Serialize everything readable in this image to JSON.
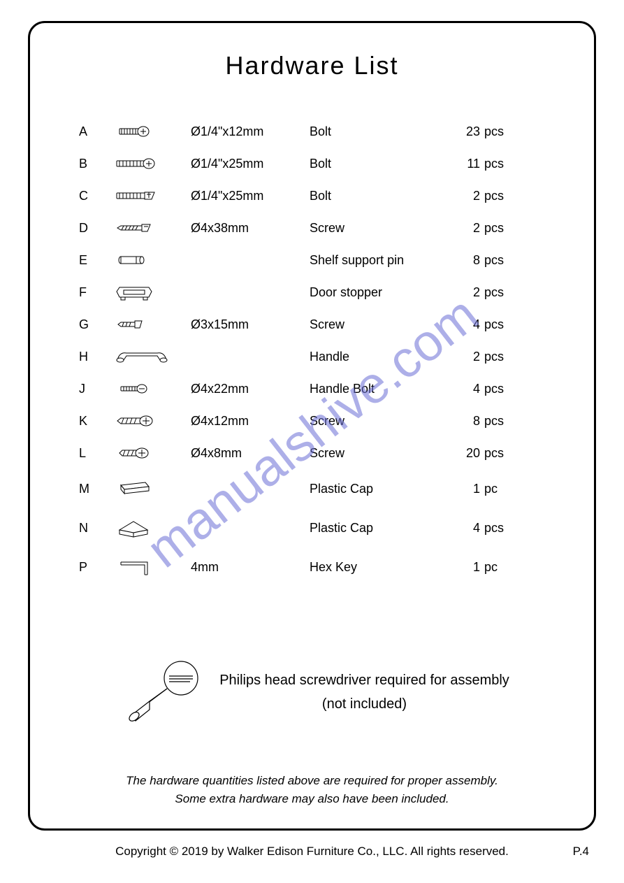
{
  "title": "Hardware   List",
  "watermark": {
    "text": "manualshive.com",
    "color": "#6b6fd6",
    "opacity": 0.55,
    "angle_deg": -38,
    "fontsize": 74
  },
  "columns": [
    "letter",
    "icon",
    "size",
    "name",
    "qty",
    "unit"
  ],
  "hardware": [
    {
      "letter": "A",
      "icon": "bolt-short",
      "size": "Ø1/4\"x12mm",
      "name": "Bolt",
      "qty": "23",
      "unit": "pcs"
    },
    {
      "letter": "B",
      "icon": "bolt-medium",
      "size": "Ø1/4\"x25mm",
      "name": "Bolt",
      "qty": "11",
      "unit": "pcs"
    },
    {
      "letter": "C",
      "icon": "bolt-flat",
      "size": "Ø1/4\"x25mm",
      "name": "Bolt",
      "qty": "2",
      "unit": "pcs"
    },
    {
      "letter": "D",
      "icon": "screw-long",
      "size": "Ø4x38mm",
      "name": "Screw",
      "qty": "2",
      "unit": "pcs"
    },
    {
      "letter": "E",
      "icon": "pin",
      "size": "",
      "name": "Shelf support pin",
      "qty": "8",
      "unit": "pcs"
    },
    {
      "letter": "F",
      "icon": "door-stopper",
      "size": "",
      "name": "Door stopper",
      "qty": "2",
      "unit": "pcs"
    },
    {
      "letter": "G",
      "icon": "screw-small",
      "size": "Ø3x15mm",
      "name": "Screw",
      "qty": "4",
      "unit": "pcs"
    },
    {
      "letter": "H",
      "icon": "handle",
      "size": "",
      "name": "Handle",
      "qty": "2",
      "unit": "pcs"
    },
    {
      "letter": "J",
      "icon": "bolt-tiny",
      "size": "Ø4x22mm",
      "name": "Handle Bolt",
      "qty": "4",
      "unit": "pcs"
    },
    {
      "letter": "K",
      "icon": "screw-med",
      "size": "Ø4x12mm",
      "name": "Screw",
      "qty": "8",
      "unit": "pcs"
    },
    {
      "letter": "L",
      "icon": "screw-short",
      "size": "Ø4x8mm",
      "name": "Screw",
      "qty": "20",
      "unit": "pcs"
    },
    {
      "letter": "M",
      "icon": "cap-flat",
      "size": "",
      "name": "Plastic Cap",
      "qty": "1",
      "unit": "pc",
      "tall": true
    },
    {
      "letter": "N",
      "icon": "cap-corner",
      "size": "",
      "name": "Plastic Cap",
      "qty": "4",
      "unit": "pcs",
      "tall": true
    },
    {
      "letter": "P",
      "icon": "hex-key",
      "size": "4mm",
      "name": "Hex Key",
      "qty": "1",
      "unit": "pc",
      "tall": true
    }
  ],
  "screwdriver": {
    "line1": "Philips head screwdriver required for assembly",
    "line2": "(not included)"
  },
  "disclaimer": {
    "line1": "The hardware quantities listed above are required for proper assembly.",
    "line2": "Some extra hardware may also have been included."
  },
  "copyright": "Copyright  © 2019 by Walker Edison Furniture Co., LLC. All rights reserved.",
  "page_number": "P.4",
  "style": {
    "page_bg": "#ffffff",
    "text_color": "#000000",
    "border_color": "#000000",
    "border_width": 3,
    "border_radius": 24,
    "title_fontsize": 36,
    "row_fontsize": 18,
    "footer_fontsize": 17,
    "icon_stroke": "#000000",
    "icon_fill": "#ffffff"
  }
}
